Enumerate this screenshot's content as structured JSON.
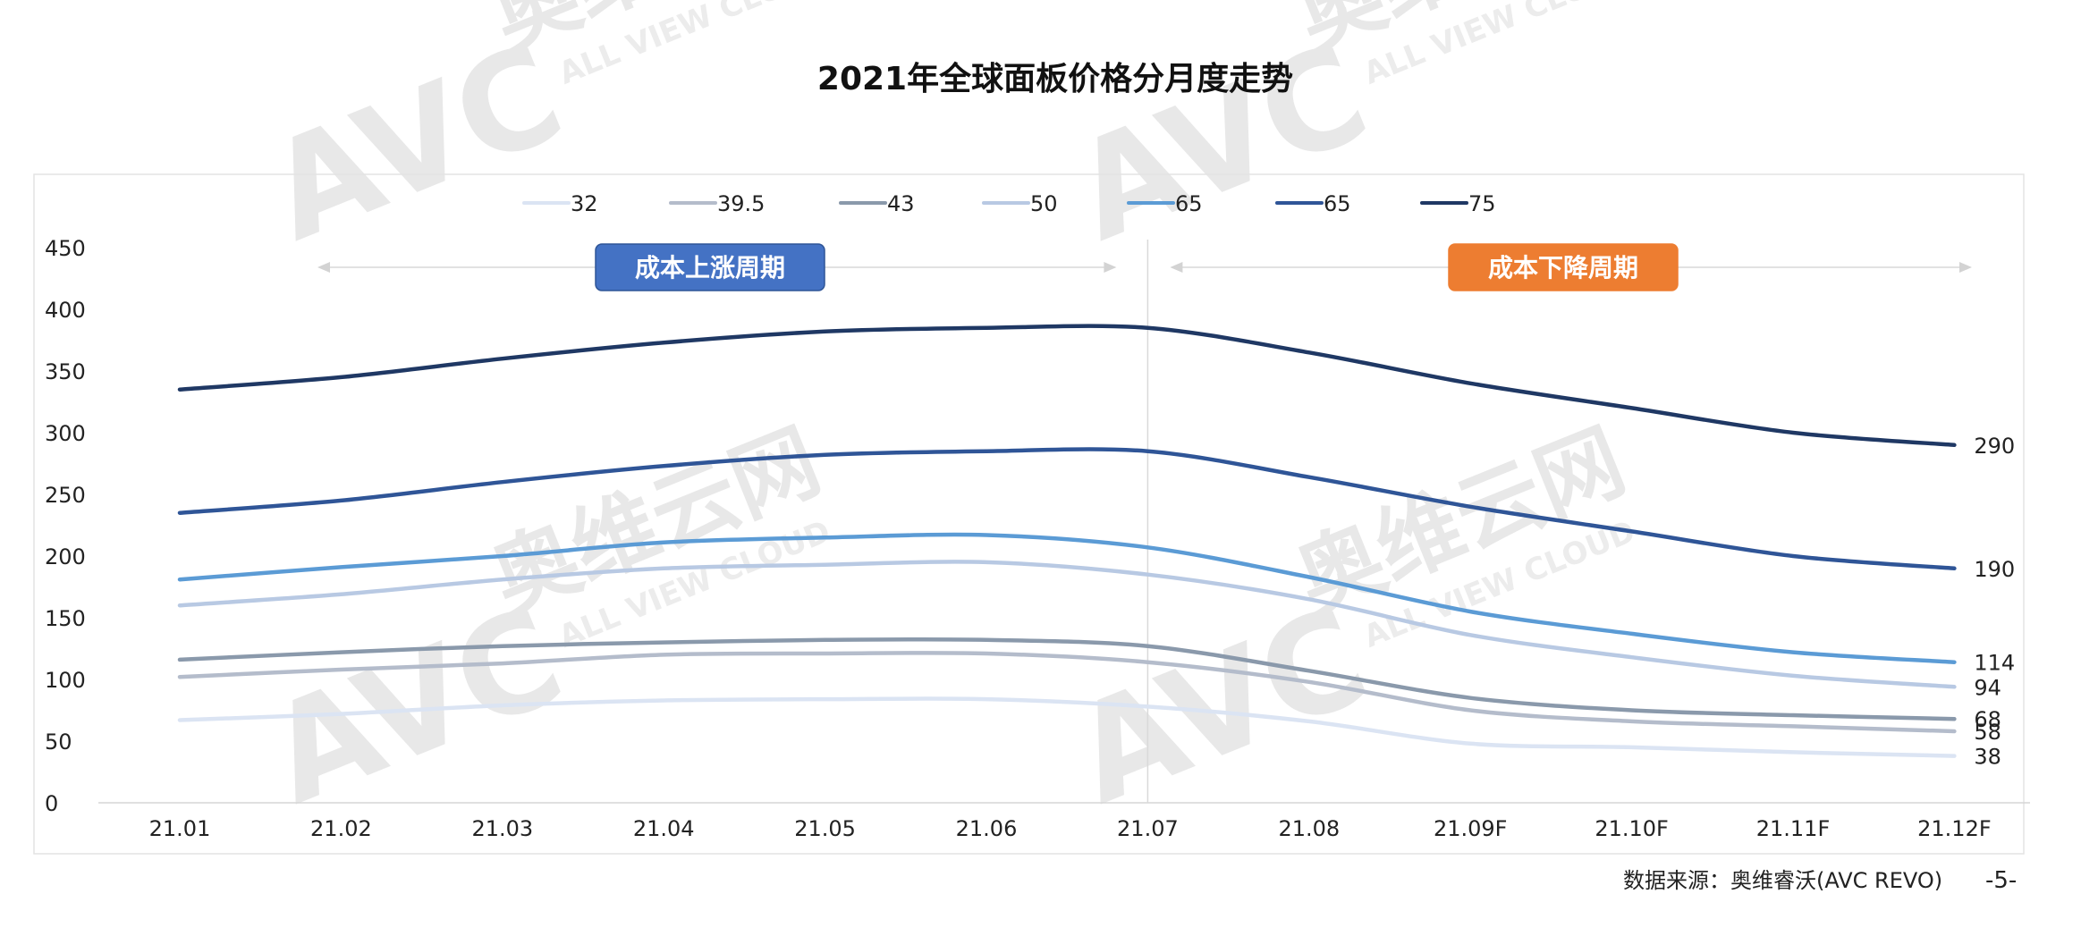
{
  "chart_data": {
    "type": "line",
    "title": "2021年全球面板价格分月度走势",
    "xlabel": "",
    "ylabel": "",
    "categories": [
      "21.01",
      "21.02",
      "21.03",
      "21.04",
      "21.05",
      "21.06",
      "21.07",
      "21.08",
      "21.09F",
      "21.10F",
      "21.11F",
      "21.12F"
    ],
    "ylim": [
      0,
      450
    ],
    "yticks": [
      0,
      50,
      100,
      150,
      200,
      250,
      300,
      350,
      400,
      450
    ],
    "grid": false,
    "legend_position": "top",
    "divider_category": "21.07",
    "series": [
      {
        "name": "32",
        "color": "#dbe4f3",
        "values": [
          67,
          72,
          79,
          83,
          84,
          84,
          78,
          66,
          48,
          45,
          41,
          38
        ],
        "end_label": "38"
      },
      {
        "name": "39.5",
        "color": "#b4bccb",
        "values": [
          102,
          108,
          113,
          120,
          121,
          121,
          114,
          98,
          75,
          66,
          62,
          58
        ],
        "end_label": "58"
      },
      {
        "name": "43",
        "color": "#8a99ab",
        "values": [
          116,
          122,
          127,
          130,
          132,
          132,
          127,
          107,
          85,
          75,
          71,
          68
        ],
        "end_label": "68"
      },
      {
        "name": "50",
        "color": "#b8c9e3",
        "values": [
          160,
          169,
          181,
          190,
          193,
          195,
          185,
          165,
          136,
          118,
          103,
          94
        ],
        "end_label": "94"
      },
      {
        "name": "65",
        "color": "#5b9bd5",
        "values": [
          181,
          191,
          200,
          211,
          215,
          217,
          207,
          183,
          155,
          137,
          122,
          114
        ],
        "end_label": "114"
      },
      {
        "name": "65",
        "color": "#2f5597",
        "values": [
          235,
          245,
          260,
          273,
          282,
          285,
          285,
          264,
          240,
          220,
          200,
          190
        ],
        "end_label": "190"
      },
      {
        "name": "75",
        "color": "#1f3864",
        "values": [
          335,
          345,
          360,
          373,
          382,
          385,
          385,
          365,
          340,
          320,
          300,
          290
        ],
        "end_label": "290"
      }
    ],
    "periods": [
      {
        "label": "成本上涨周期",
        "color": "#4472c4",
        "from": "21.01",
        "to": "21.07"
      },
      {
        "label": "成本下降周期",
        "color": "#ed7d31",
        "from": "21.07",
        "to": "21.12F"
      }
    ]
  },
  "footer": {
    "source": "数据来源：奥维睿沃(AVC REVO)",
    "page_number": "-5-"
  },
  "watermark": {
    "logo": "AVC",
    "brand": "奥维云网",
    "tagline": "ALL VIEW CLOUD"
  }
}
